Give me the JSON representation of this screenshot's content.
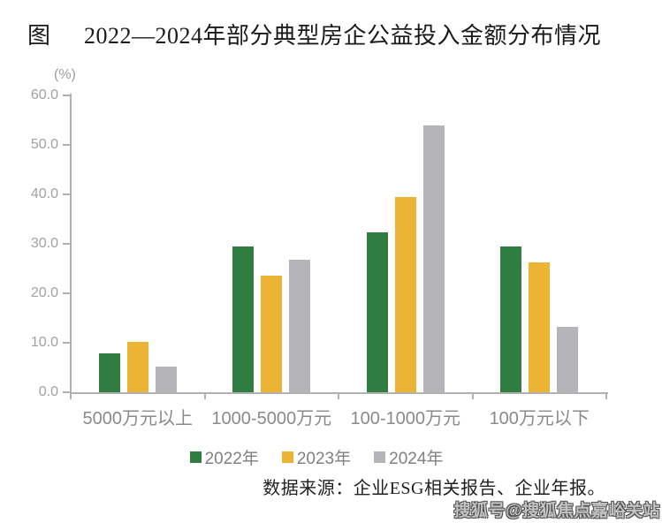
{
  "figure_label": "图",
  "title": "2022—2024年部分典型房企公益投入金额分布情况",
  "source": "数据来源：企业ESG相关报告、企业年报。",
  "watermark": "搜狐号@搜狐焦点嘉峪关站",
  "colors": {
    "series_2022": "#2f7d40",
    "series_2023": "#ebb434",
    "series_2024": "#b5b5b9",
    "axis": "#b1b1b1",
    "tick_text": "#a2a2a2",
    "category_text": "#8a8a8a",
    "legend_text": "#808080"
  },
  "chart_data": {
    "type": "bar",
    "title": "2022—2024年部分典型房企公益投入金额分布情况",
    "categories": [
      "5000万元以上",
      "1000-5000万元",
      "100-1000万元",
      "100万元以下"
    ],
    "series": [
      {
        "name": "2022年",
        "color": "#2f7d40",
        "values": [
          7.9,
          29.4,
          32.4,
          29.4
        ]
      },
      {
        "name": "2023年",
        "color": "#ebb434",
        "values": [
          10.2,
          23.5,
          39.4,
          26.2
        ]
      },
      {
        "name": "2024年",
        "color": "#b5b5b9",
        "values": [
          5.1,
          26.8,
          53.9,
          13.3
        ]
      }
    ],
    "ylabel": "(%)",
    "ylim": [
      0,
      60
    ],
    "y_ticks": [
      "0.0",
      "10.0",
      "20.0",
      "30.0",
      "40.0",
      "50.0",
      "60.0"
    ],
    "legend_position": "bottom",
    "grid": false
  }
}
